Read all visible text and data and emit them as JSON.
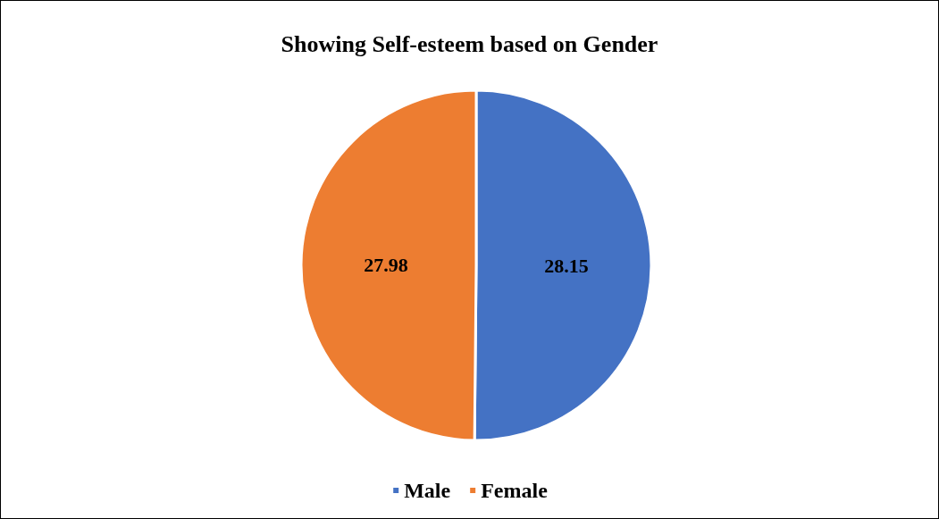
{
  "chart_data": {
    "type": "pie",
    "title": "Showing Self-esteem based on Gender",
    "categories": [
      "Male",
      "Female"
    ],
    "values": [
      28.15,
      27.98
    ],
    "colors": [
      "#4472c4",
      "#ed7d31"
    ],
    "data_labels": true,
    "legend": "bottom"
  }
}
